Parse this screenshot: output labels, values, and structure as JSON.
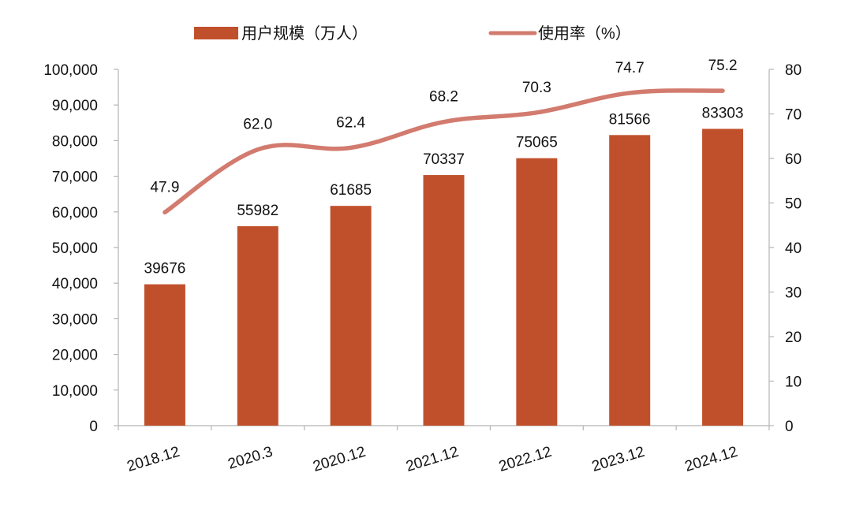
{
  "chart_data": {
    "type": "bar",
    "categories": [
      "2018.12",
      "2020.3",
      "2020.12",
      "2021.12",
      "2022.12",
      "2023.12",
      "2024.12"
    ],
    "series": [
      {
        "name": "用户规模（万人）",
        "type": "bar",
        "axis": "left",
        "color": "#c0502b",
        "values": [
          39676,
          55982,
          61685,
          70337,
          75065,
          81566,
          83303
        ],
        "labels": [
          "39676",
          "55982",
          "61685",
          "70337",
          "75065",
          "81566",
          "83303"
        ]
      },
      {
        "name": "使用率（%）",
        "type": "line",
        "smooth": true,
        "axis": "right",
        "color": "#d27b6e",
        "values": [
          47.9,
          62.0,
          62.4,
          68.2,
          70.3,
          74.7,
          75.2
        ],
        "labels": [
          "47.9",
          "62.0",
          "62.4",
          "68.2",
          "70.3",
          "74.7",
          "75.2"
        ]
      }
    ],
    "y_left": {
      "min": 0,
      "max": 100000,
      "ticks": [
        "0",
        "10,000",
        "20,000",
        "30,000",
        "40,000",
        "50,000",
        "60,000",
        "70,000",
        "80,000",
        "90,000",
        "100,000"
      ]
    },
    "y_right": {
      "min": 0,
      "max": 80,
      "ticks": [
        "0",
        "10",
        "20",
        "30",
        "40",
        "50",
        "60",
        "70",
        "80"
      ]
    },
    "legend": {
      "placement": "top",
      "bar_label": "用户规模（万人）",
      "line_label": "使用率（%）"
    },
    "grid": false
  }
}
